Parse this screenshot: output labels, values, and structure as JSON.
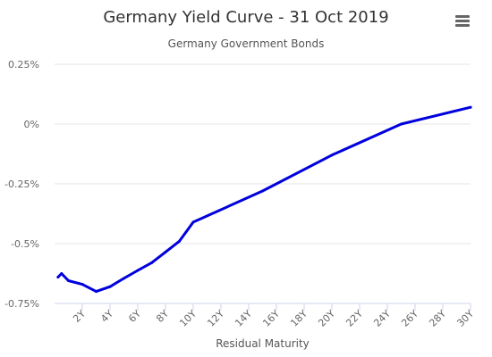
{
  "chart_data": {
    "type": "line",
    "title": "Germany Yield Curve - 31 Oct 2019",
    "subtitle": "Germany Government Bonds",
    "xlabel": "Residual Maturity",
    "ylabel": "",
    "x_unit": "years",
    "y_unit": "percent",
    "xlim": [
      0,
      30
    ],
    "ylim": [
      -0.75,
      0.25
    ],
    "yticks": [
      0.25,
      0,
      -0.25,
      -0.5,
      -0.75
    ],
    "ytick_labels": [
      "0.25%",
      "0%",
      "-0.25%",
      "-0.5%",
      "-0.75%"
    ],
    "xticks": [
      2,
      4,
      6,
      8,
      10,
      12,
      14,
      16,
      18,
      20,
      22,
      24,
      26,
      28,
      30
    ],
    "xtick_labels": [
      "2Y",
      "4Y",
      "6Y",
      "8Y",
      "10Y",
      "12Y",
      "14Y",
      "16Y",
      "18Y",
      "20Y",
      "22Y",
      "24Y",
      "26Y",
      "28Y",
      "30Y"
    ],
    "grid": true,
    "legend": "none",
    "series": [
      {
        "color": "#0000dd",
        "x": [
          0.25,
          0.5,
          1,
          2,
          3,
          4,
          5,
          6,
          7,
          8,
          9,
          10,
          15,
          20,
          25,
          30
        ],
        "y": [
          -0.64,
          -0.625,
          -0.655,
          -0.67,
          -0.7,
          -0.68,
          -0.645,
          -0.612,
          -0.58,
          -0.535,
          -0.49,
          -0.41,
          -0.28,
          -0.13,
          0.0,
          0.07
        ]
      }
    ]
  },
  "menu": {
    "icon": "hamburger-menu-icon"
  }
}
